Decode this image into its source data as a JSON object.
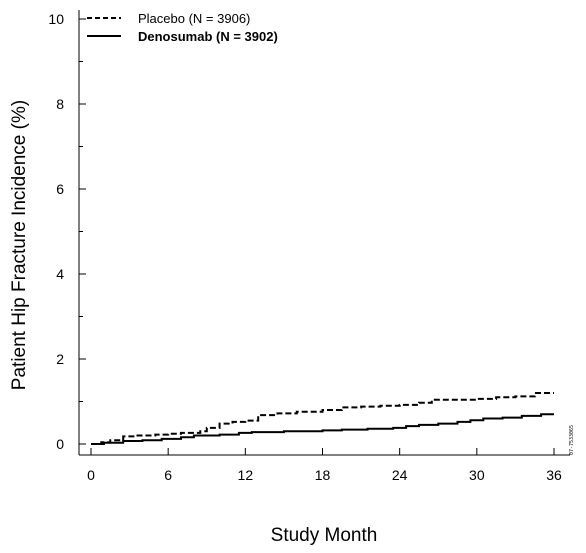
{
  "chart_data": {
    "type": "line",
    "title": "",
    "xlabel": "Study Month",
    "ylabel": "Patient Hip Fracture Incidence (%)",
    "xlim": [
      0,
      36
    ],
    "ylim": [
      0,
      10
    ],
    "xticks": [
      0,
      6,
      12,
      18,
      24,
      30,
      36
    ],
    "yticks": [
      0,
      2,
      4,
      6,
      8,
      10
    ],
    "grid": false,
    "legend_position": "top-left",
    "line_shape": "step",
    "series": [
      {
        "name": "Placebo (N = 3906)",
        "line_style": "dashed",
        "color": "#000000",
        "points": [
          [
            0,
            0
          ],
          [
            0.8,
            0.04
          ],
          [
            1.5,
            0.09
          ],
          [
            2.5,
            0.18
          ],
          [
            3.5,
            0.2
          ],
          [
            5.0,
            0.22
          ],
          [
            6.0,
            0.24
          ],
          [
            7.0,
            0.26
          ],
          [
            8.5,
            0.3
          ],
          [
            9.0,
            0.38
          ],
          [
            10.0,
            0.48
          ],
          [
            11.0,
            0.52
          ],
          [
            12.0,
            0.55
          ],
          [
            13.0,
            0.68
          ],
          [
            14.5,
            0.72
          ],
          [
            16.0,
            0.76
          ],
          [
            18.0,
            0.8
          ],
          [
            19.5,
            0.86
          ],
          [
            21.0,
            0.88
          ],
          [
            22.5,
            0.9
          ],
          [
            24.0,
            0.92
          ],
          [
            25.5,
            0.97
          ],
          [
            26.5,
            1.04
          ],
          [
            28.0,
            1.04
          ],
          [
            30.0,
            1.06
          ],
          [
            31.5,
            1.1
          ],
          [
            33.0,
            1.12
          ],
          [
            34.5,
            1.2
          ],
          [
            36.0,
            1.2
          ]
        ]
      },
      {
        "name": "Denosumab (N = 3902)",
        "line_style": "solid",
        "color": "#000000",
        "points": [
          [
            0,
            0
          ],
          [
            1.0,
            0.03
          ],
          [
            2.5,
            0.07
          ],
          [
            4.0,
            0.09
          ],
          [
            5.5,
            0.12
          ],
          [
            7.0,
            0.16
          ],
          [
            8.0,
            0.2
          ],
          [
            10.0,
            0.22
          ],
          [
            11.5,
            0.26
          ],
          [
            12.5,
            0.28
          ],
          [
            15.0,
            0.3
          ],
          [
            18.0,
            0.32
          ],
          [
            19.5,
            0.34
          ],
          [
            21.5,
            0.36
          ],
          [
            23.5,
            0.38
          ],
          [
            24.5,
            0.42
          ],
          [
            25.5,
            0.45
          ],
          [
            27.0,
            0.48
          ],
          [
            28.5,
            0.52
          ],
          [
            29.5,
            0.56
          ],
          [
            30.5,
            0.6
          ],
          [
            32.0,
            0.62
          ],
          [
            33.5,
            0.66
          ],
          [
            35.0,
            0.7
          ],
          [
            36.0,
            0.7
          ]
        ]
      }
    ],
    "side_code": "07-7533065"
  }
}
